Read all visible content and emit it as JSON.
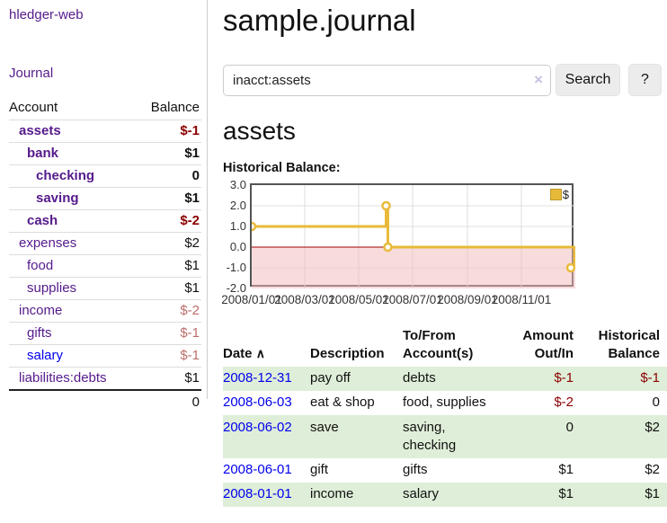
{
  "app": {
    "title": "hledger-web",
    "nav_journal": "Journal"
  },
  "sidebar": {
    "columns": {
      "account": "Account",
      "balance": "Balance"
    },
    "accounts": [
      {
        "name": "assets",
        "balance": "$-1"
      },
      {
        "name": "bank",
        "balance": "$1"
      },
      {
        "name": "checking",
        "balance": "0"
      },
      {
        "name": "saving",
        "balance": "$1"
      },
      {
        "name": "cash",
        "balance": "$-2"
      },
      {
        "name": "expenses",
        "balance": "$2"
      },
      {
        "name": "food",
        "balance": "$1"
      },
      {
        "name": "supplies",
        "balance": "$1"
      },
      {
        "name": "income",
        "balance": "$-2"
      },
      {
        "name": "gifts",
        "balance": "$-1"
      },
      {
        "name": "salary",
        "balance": "$-1"
      },
      {
        "name": "liabilities:debts",
        "balance": "$1"
      }
    ],
    "total": "0"
  },
  "header": {
    "title": "sample.journal"
  },
  "search": {
    "value": "inacct:assets",
    "clear_icon": "×",
    "button_label": "Search",
    "help_label": "?"
  },
  "account_page": {
    "heading": "assets",
    "chart_label": "Historical Balance:"
  },
  "chart_data": {
    "type": "line",
    "step": true,
    "title": "Historical Balance",
    "series": [
      {
        "name": "$",
        "x": [
          "2008-01-01",
          "2008-06-01",
          "2008-06-03",
          "2008-12-31"
        ],
        "x_days": [
          0,
          152,
          154,
          365
        ],
        "y": [
          1,
          2,
          0,
          -1
        ]
      }
    ],
    "ylim": [
      -2,
      3
    ],
    "yticks": [
      "3.0",
      "2.0",
      "1.0",
      "0.0",
      "-1.0",
      "-2.0"
    ],
    "xticks": [
      "2008/01/01",
      "2008/03/01",
      "2008/05/01",
      "2008/07/01",
      "2008/09/01",
      "2008/11/01"
    ],
    "xtick_days": [
      0,
      60,
      121,
      182,
      244,
      305
    ],
    "legend_label": "$",
    "legend_position": "top-right",
    "grid": true,
    "colors": {
      "line": "#e8ba3a",
      "negative_fill": "#f2b9b9",
      "zero_line": "#a00000"
    }
  },
  "transactions": {
    "sort_icon": "∧",
    "headers": {
      "date": "Date",
      "description": "Description",
      "accounts": "To/From Account(s)",
      "amount": "Amount Out/In",
      "balance": "Historical Balance"
    },
    "rows": [
      {
        "date": "2008-12-31",
        "description": "pay off",
        "accounts": "debts",
        "amount": "$-1",
        "balance": "$-1"
      },
      {
        "date": "2008-06-03",
        "description": "eat & shop",
        "accounts": "food, supplies",
        "amount": "$-2",
        "balance": "0"
      },
      {
        "date": "2008-06-02",
        "description": "save",
        "accounts": "saving, checking",
        "amount": "0",
        "balance": "$2"
      },
      {
        "date": "2008-06-01",
        "description": "gift",
        "accounts": "gifts",
        "amount": "$1",
        "balance": "$2"
      },
      {
        "date": "2008-01-01",
        "description": "income",
        "accounts": "salary",
        "amount": "$1",
        "balance": "$1"
      }
    ]
  }
}
